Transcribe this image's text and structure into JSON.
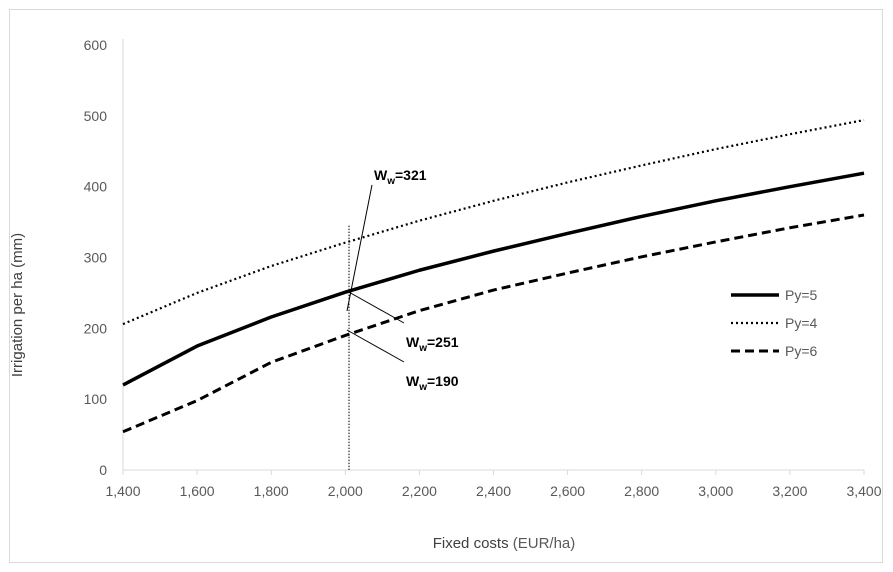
{
  "chart_data": {
    "type": "line",
    "xlabel": "Fixed costs",
    "xlabel_unit": "(EUR/ha)",
    "ylabel": "Irrigation per ha (mm)",
    "x": [
      1400,
      1600,
      1800,
      2000,
      2200,
      2400,
      2600,
      2800,
      3000,
      3200,
      3400
    ],
    "xlim": [
      1400,
      3400
    ],
    "ylim": [
      0,
      600
    ],
    "x_ticks": [
      "1,400",
      "1,600",
      "1,800",
      "2,000",
      "2,200",
      "2,400",
      "2,600",
      "2,800",
      "3,000",
      "3,200",
      "3,400"
    ],
    "y_ticks": [
      "0",
      "100",
      "200",
      "300",
      "400",
      "500",
      "600"
    ],
    "grid": false,
    "legend_position": "right",
    "series": [
      {
        "name": "Py=5",
        "style": "solid",
        "color": "#000000",
        "values": [
          120,
          175,
          216,
          251,
          282,
          309,
          334,
          358,
          380,
          400,
          419
        ]
      },
      {
        "name": "Py=4",
        "style": "dotted",
        "color": "#000000",
        "values": [
          206,
          250,
          288,
          321,
          352,
          380,
          406,
          430,
          453,
          474,
          494
        ]
      },
      {
        "name": "Py=6",
        "style": "dashed",
        "color": "#000000",
        "values": [
          54,
          98,
          152,
          190,
          225,
          254,
          278,
          301,
          322,
          342,
          360
        ]
      }
    ],
    "reference_line": {
      "x": 2010,
      "style": "thin-dotted"
    },
    "annotations": [
      {
        "label_main": "W",
        "label_sub": "w",
        "label_value": "=321",
        "x": 2000,
        "y": 321
      },
      {
        "label_main": "W",
        "label_sub": "w",
        "label_value": "=251",
        "x": 2000,
        "y": 251
      },
      {
        "label_main": "W",
        "label_sub": "w",
        "label_value": "=190",
        "x": 2000,
        "y": 190
      }
    ]
  }
}
